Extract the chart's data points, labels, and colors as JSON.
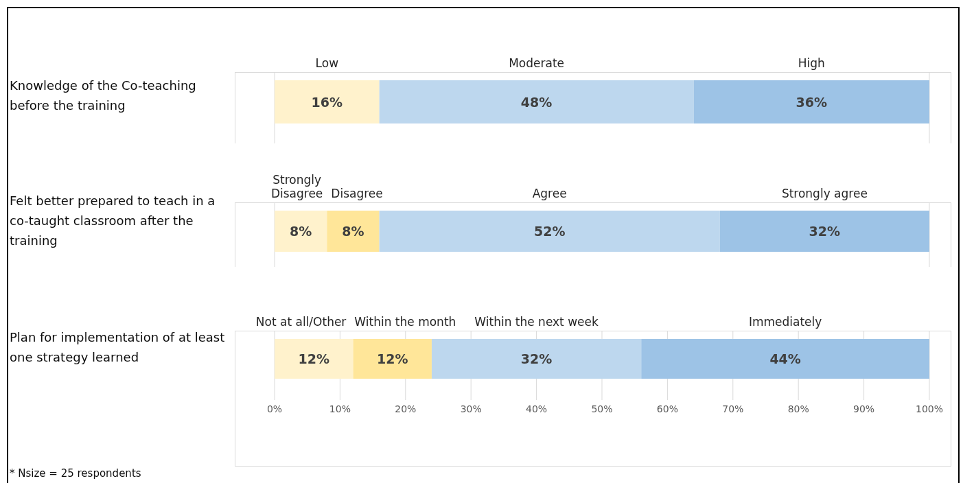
{
  "chart_data": [
    {
      "type": "bar",
      "orientation": "horizontal",
      "stacked": true,
      "categories": [
        "Knowledge of the Co-teaching before the training"
      ],
      "series": [
        {
          "name": "Low",
          "color": "#fff2cc",
          "values": [
            16
          ],
          "value_labels": [
            "16%"
          ]
        },
        {
          "name": "Moderate",
          "color": "#bdd7ee",
          "values": [
            48
          ],
          "value_labels": [
            "48%"
          ]
        },
        {
          "name": "High",
          "color": "#9dc3e6",
          "values": [
            36
          ],
          "value_labels": [
            "36%"
          ]
        }
      ],
      "xlim": [
        0,
        100
      ],
      "xticks": [
        {
          "value": 0,
          "label": null
        },
        {
          "value": 10,
          "label": null
        },
        {
          "value": 20,
          "label": null
        },
        {
          "value": 30,
          "label": null
        },
        {
          "value": 40,
          "label": null
        },
        {
          "value": 50,
          "label": null
        },
        {
          "value": 60,
          "label": null
        },
        {
          "value": 70,
          "label": null
        },
        {
          "value": 80,
          "label": null
        },
        {
          "value": 90,
          "label": null
        },
        {
          "value": 100,
          "label": null
        }
      ],
      "grid": "x",
      "tick_labels": "y"
    },
    {
      "type": "bar",
      "orientation": "horizontal",
      "stacked": true,
      "categories": [
        "Felt better prepared to teach in a co-taught classroom after the training"
      ],
      "series": [
        {
          "name": "Strongly Disagree",
          "color": "#fff2cc",
          "values": [
            8
          ],
          "value_labels": [
            "8%"
          ]
        },
        {
          "name": "Disagree",
          "color": "#ffe699",
          "values": [
            8
          ],
          "value_labels": [
            "8%"
          ]
        },
        {
          "name": "Agree",
          "color": "#bdd7ee",
          "values": [
            52
          ],
          "value_labels": [
            "52%"
          ]
        },
        {
          "name": "Strongly agree",
          "color": "#9dc3e6",
          "values": [
            32
          ],
          "value_labels": [
            "32%"
          ]
        }
      ],
      "xlim": [
        0,
        100
      ],
      "xticks": [
        {
          "value": 0,
          "label": null
        },
        {
          "value": 10,
          "label": null
        },
        {
          "value": 20,
          "label": null
        },
        {
          "value": 30,
          "label": null
        },
        {
          "value": 40,
          "label": null
        },
        {
          "value": 50,
          "label": null
        },
        {
          "value": 60,
          "label": null
        },
        {
          "value": 70,
          "label": null
        },
        {
          "value": 80,
          "label": null
        },
        {
          "value": 90,
          "label": null
        },
        {
          "value": 100,
          "label": null
        }
      ],
      "grid": "x",
      "tick_labels": "y"
    },
    {
      "type": "bar",
      "orientation": "horizontal",
      "stacked": true,
      "categories": [
        "Plan for implementation of at least one strategy learned"
      ],
      "series": [
        {
          "name": "Not at all/Other",
          "color": "#fff2cc",
          "values": [
            12
          ],
          "value_labels": [
            "12%"
          ]
        },
        {
          "name": "Within the month",
          "color": "#ffe699",
          "values": [
            12
          ],
          "value_labels": [
            "12%"
          ]
        },
        {
          "name": "Within the next week",
          "color": "#bdd7ee",
          "values": [
            32
          ],
          "value_labels": [
            "32%"
          ]
        },
        {
          "name": "Immediately",
          "color": "#9dc3e6",
          "values": [
            44
          ],
          "value_labels": [
            "44%"
          ]
        }
      ],
      "xlim": [
        0,
        100
      ],
      "xticks": [
        {
          "value": 0,
          "label": "0%"
        },
        {
          "value": 10,
          "label": "10%"
        },
        {
          "value": 20,
          "label": "20%"
        },
        {
          "value": 30,
          "label": "30%"
        },
        {
          "value": 40,
          "label": "40%"
        },
        {
          "value": 50,
          "label": "50%"
        },
        {
          "value": 60,
          "label": "60%"
        },
        {
          "value": 70,
          "label": "70%"
        },
        {
          "value": 80,
          "label": "80%"
        },
        {
          "value": 90,
          "label": "90%"
        },
        {
          "value": 100,
          "label": "100%"
        }
      ],
      "grid": "x",
      "annotations": [
        "* Nsize = 25 respondents"
      ]
    }
  ]
}
